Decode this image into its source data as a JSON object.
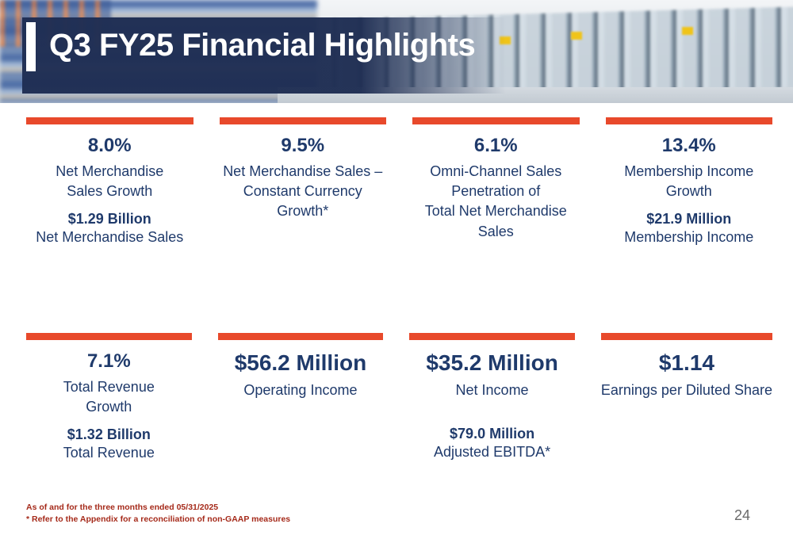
{
  "header": {
    "title": "Q3 FY25 Financial Highlights"
  },
  "rows": [
    {
      "cards": [
        {
          "value": "8.0%",
          "label": "Net Merchandise\nSales Growth",
          "sub_value": "$1.29 Billion",
          "sub_label": "Net Merchandise Sales"
        },
        {
          "value": "9.5%",
          "label": "Net Merchandise Sales –\nConstant Currency Growth*"
        },
        {
          "value": "6.1%",
          "label": "Omni-Channel Sales\nPenetration of\nTotal Net Merchandise\nSales"
        },
        {
          "value": "13.4%",
          "label": "Membership Income\nGrowth",
          "sub_value": "$21.9 Million",
          "sub_label": "Membership Income"
        }
      ]
    },
    {
      "cards": [
        {
          "value": "7.1%",
          "label": "Total Revenue\nGrowth",
          "sub_value": "$1.32 Billion",
          "sub_label": "Total Revenue"
        },
        {
          "value": "$56.2 Million",
          "label": "Operating Income"
        },
        {
          "value": "$35.2 Million",
          "label": "Net Income",
          "sub_value": "$79.0 Million",
          "sub_label": "Adjusted EBITDA*"
        },
        {
          "value": "$1.14",
          "label": "Earnings per Diluted Share"
        }
      ]
    }
  ],
  "footer": {
    "line1": "As of and for the three months ended 05/31/2025",
    "line2": "* Refer to the Appendix for a reconciliation of non-GAAP measures",
    "page_number": "24"
  },
  "colors": {
    "accent_bar": "#E8492B",
    "navy": "#1F3A6B",
    "footer_red": "#A52A1A"
  }
}
